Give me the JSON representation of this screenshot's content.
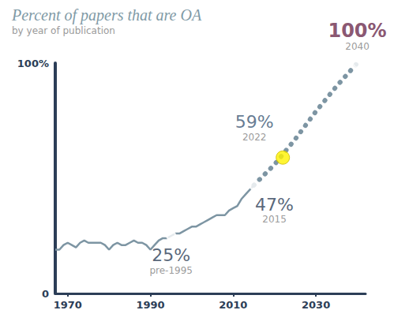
{
  "chart_data": {
    "type": "line",
    "title": "Percent of papers that are OA",
    "subtitle": "by year of publication",
    "xlim": [
      1967,
      2042
    ],
    "xticks": [
      1970,
      1990,
      2010,
      2030
    ],
    "ylim": [
      0,
      100
    ],
    "yticks": [
      0,
      {
        "value": 100,
        "label": "100%"
      }
    ],
    "grid": false,
    "series": [
      {
        "x": [
          1967,
          1968,
          1969,
          1970,
          1971,
          1972,
          1973,
          1974,
          1975,
          1976,
          1977,
          1978,
          1979,
          1980,
          1981,
          1982,
          1983,
          1984,
          1985,
          1986,
          1987,
          1988,
          1989,
          1990,
          1991,
          1992,
          1993,
          1994,
          1995,
          1996,
          1997,
          1998,
          1999,
          2000,
          2001,
          2002,
          2003,
          2004,
          2005,
          2006,
          2007,
          2008,
          2009,
          2010,
          2011,
          2012,
          2013,
          2014,
          2015
        ],
        "values": [
          19,
          19,
          21,
          22,
          21,
          20,
          22,
          23,
          22,
          22,
          22,
          22,
          21,
          19,
          21,
          22,
          21,
          21,
          22,
          23,
          22,
          22,
          21,
          19,
          21,
          23,
          24,
          24,
          25,
          26,
          26,
          27,
          28,
          29,
          29,
          30,
          31,
          32,
          33,
          34,
          34,
          34,
          36,
          37,
          38,
          41,
          43,
          45,
          47
        ],
        "color": "#7d95a3",
        "line_style": "solid"
      },
      {
        "x": [
          2015,
          2020,
          2025,
          2030,
          2035,
          2040
        ],
        "values": [
          47,
          56,
          67,
          79,
          90,
          100
        ],
        "color": "#7d95a3",
        "line_style": "dotted"
      }
    ],
    "annotations": [
      {
        "x": 1995,
        "y": 25,
        "label": "25%",
        "sublabel": "pre-1995",
        "color": "#2c3e57",
        "marker": "hollow"
      },
      {
        "x": 2015,
        "y": 47,
        "label": "47%",
        "sublabel": "2015",
        "color": "#2c3e57",
        "marker": "hollow"
      },
      {
        "x": 2022,
        "y": 59,
        "label": "59%",
        "sublabel": "2022",
        "color": "#fff200",
        "marker": "filled"
      },
      {
        "x": 2040,
        "y": 100,
        "label": "100%",
        "sublabel": "2040",
        "color": "#6b2a4c",
        "marker": "hollow"
      }
    ]
  }
}
